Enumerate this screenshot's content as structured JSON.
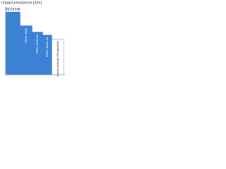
{
  "chart_data": {
    "type": "bar",
    "title": "Impact resistance (J/m)",
    "categories": [
      null,
      "PEEK 450G",
      "PEEK 450CA30",
      "PEEK 450GL30",
      "Polyetherimide reinforced 30% glass fibre"
    ],
    "values": [
      100,
      78,
      68,
      63,
      57
    ],
    "colors": [
      "#3c82d4",
      "#3c82d4",
      "#3c82d4",
      "#3c82d4",
      "#ffffff"
    ],
    "annotations": [
      "No break"
    ],
    "ylim": [
      0,
      100
    ]
  }
}
